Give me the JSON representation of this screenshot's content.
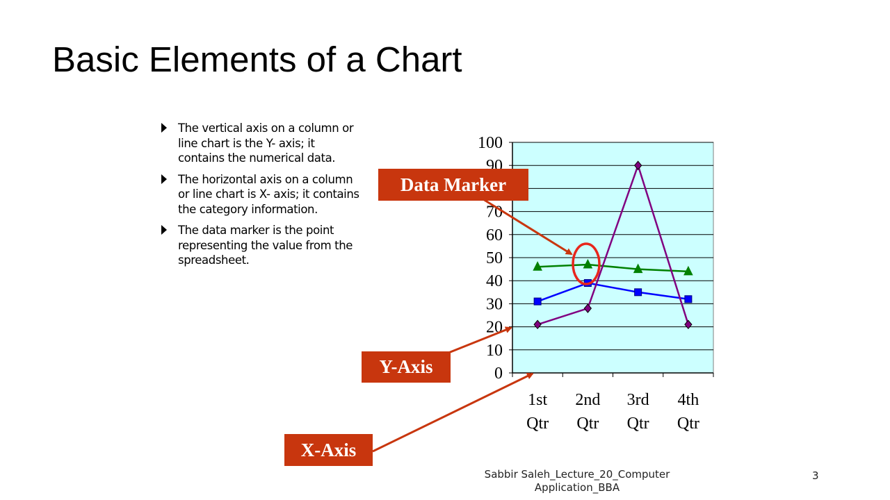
{
  "slide": {
    "title": "Basic Elements of a Chart",
    "bullets": [
      "The vertical axis on a column or line chart is the Y- axis; it contains the numerical data.",
      "The horizontal axis on a column or line chart is X- axis; it contains the category information.",
      "The data marker is the point representing the value from the spreadsheet."
    ],
    "footer": "Sabbir Saleh_Lecture_20_Computer Application_BBA",
    "page_number": "3"
  },
  "callouts": {
    "data_marker": "Data Marker",
    "y_axis": "Y-Axis",
    "x_axis": "X-Axis"
  },
  "colors": {
    "plot_background": "#ccffff",
    "callout_background": "#c8360e",
    "arrow": "#c8360e",
    "highlight_circle": "#e8261c"
  },
  "chart_data": {
    "type": "line",
    "categories": [
      "1st Qtr",
      "2nd Qtr",
      "3rd Qtr",
      "4th Qtr"
    ],
    "series": [
      {
        "values": [
          46,
          47,
          45,
          44
        ],
        "color": "#008000",
        "marker": "triangle"
      },
      {
        "values": [
          31,
          39,
          35,
          32
        ],
        "color": "#0000ff",
        "marker": "square"
      },
      {
        "values": [
          21,
          28,
          90,
          21
        ],
        "color": "#800080",
        "marker": "diamond"
      }
    ],
    "ylim": [
      0,
      100
    ],
    "yticks": [
      0,
      10,
      20,
      30,
      40,
      50,
      60,
      70,
      80,
      90,
      100
    ],
    "grid": true,
    "legend": "none"
  }
}
